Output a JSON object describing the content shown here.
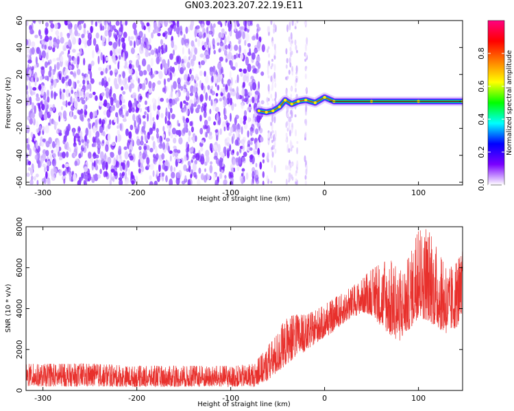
{
  "title": "GN03.2023.207.22.19.E11",
  "chart_data": [
    {
      "type": "heatmap",
      "xlabel": "Height of straight line (km)",
      "ylabel": "Frequency (Hz)",
      "xlim": [
        -318,
        147
      ],
      "ylim": [
        -62,
        60
      ],
      "x_ticks": [
        -300,
        -200,
        -100,
        0,
        100
      ],
      "y_ticks": [
        60,
        40,
        20,
        0,
        -20,
        -40,
        -60
      ],
      "grid": false,
      "noise_region_x": [
        -318,
        -65
      ],
      "sparse_noise_columns_x": [
        -60,
        -56,
        -53,
        -40,
        -37,
        -35,
        -30,
        -20
      ],
      "ridge": {
        "description": "strong narrowband signal near 0 Hz",
        "points": [
          {
            "x": -70,
            "y": -7
          },
          {
            "x": -62,
            "y": -8
          },
          {
            "x": -55,
            "y": -7
          },
          {
            "x": -48,
            "y": -4
          },
          {
            "x": -42,
            "y": 1
          },
          {
            "x": -35,
            "y": -2
          },
          {
            "x": -28,
            "y": 0
          },
          {
            "x": -20,
            "y": 1
          },
          {
            "x": -10,
            "y": -1
          },
          {
            "x": 0,
            "y": 3
          },
          {
            "x": 10,
            "y": 0
          },
          {
            "x": 50,
            "y": 0
          },
          {
            "x": 100,
            "y": 0
          },
          {
            "x": 147,
            "y": 0
          }
        ]
      },
      "colorbar": {
        "label": "Normalized spectral amplitude",
        "ticks": [
          0.0,
          0.2,
          0.4,
          0.6,
          0.8
        ],
        "range": [
          0,
          1
        ],
        "colormap": [
          "#ffffff",
          "#7a00ff",
          "#0000ff",
          "#00ffff",
          "#00ff00",
          "#ffff00",
          "#ff8000",
          "#ff0000",
          "#ff0080"
        ]
      }
    },
    {
      "type": "line",
      "xlabel": "Height of straight line (km)",
      "ylabel": "SNR (10 * v/v)",
      "xlim": [
        -318,
        147
      ],
      "ylim": [
        0,
        8000
      ],
      "x_ticks": [
        -300,
        -200,
        -100,
        0,
        100
      ],
      "y_ticks": [
        0,
        2000,
        4000,
        6000,
        8000
      ],
      "grid": false,
      "series": [
        {
          "color": "#e8302c",
          "envelope": [
            {
              "x": -318,
              "low": 0,
              "high": 1300
            },
            {
              "x": -250,
              "low": 0,
              "high": 1300
            },
            {
              "x": -200,
              "low": 0,
              "high": 1200
            },
            {
              "x": -150,
              "low": 0,
              "high": 1200
            },
            {
              "x": -100,
              "low": 0,
              "high": 1200
            },
            {
              "x": -75,
              "low": 0,
              "high": 1300
            },
            {
              "x": -60,
              "low": 200,
              "high": 2200
            },
            {
              "x": -50,
              "low": 500,
              "high": 2900
            },
            {
              "x": -40,
              "low": 900,
              "high": 3600
            },
            {
              "x": -30,
              "low": 1300,
              "high": 3700
            },
            {
              "x": -20,
              "low": 1600,
              "high": 3700
            },
            {
              "x": -10,
              "low": 2000,
              "high": 3900
            },
            {
              "x": 0,
              "low": 2300,
              "high": 4200
            },
            {
              "x": 10,
              "low": 2600,
              "high": 4500
            },
            {
              "x": 20,
              "low": 3000,
              "high": 4800
            },
            {
              "x": 30,
              "low": 3300,
              "high": 5100
            },
            {
              "x": 40,
              "low": 3500,
              "high": 5500
            },
            {
              "x": 50,
              "low": 3300,
              "high": 5900
            },
            {
              "x": 60,
              "low": 2600,
              "high": 6200
            },
            {
              "x": 70,
              "low": 2000,
              "high": 6400
            },
            {
              "x": 80,
              "low": 1800,
              "high": 5800
            },
            {
              "x": 90,
              "low": 2300,
              "high": 6600
            },
            {
              "x": 100,
              "low": 2800,
              "high": 7800
            },
            {
              "x": 110,
              "low": 2600,
              "high": 7900
            },
            {
              "x": 120,
              "low": 2400,
              "high": 6900
            },
            {
              "x": 130,
              "low": 2200,
              "high": 5900
            },
            {
              "x": 140,
              "low": 2500,
              "high": 6200
            },
            {
              "x": 147,
              "low": 2700,
              "high": 6800
            }
          ]
        }
      ]
    }
  ]
}
